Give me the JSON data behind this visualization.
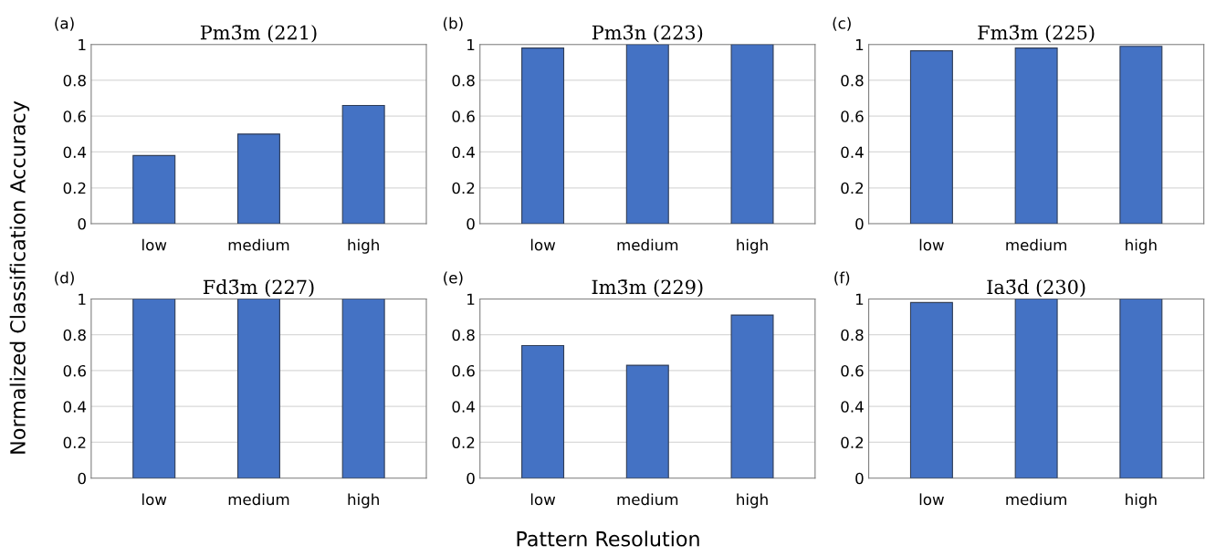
{
  "chart_data": [
    {
      "type": "bar",
      "title": "Pm3̄m (221)",
      "annotations": [
        "(a)"
      ],
      "ylabel": "Normalized Classification Accuracy",
      "categories": [
        "low",
        "medium",
        "high"
      ],
      "values": [
        0.38,
        0.5,
        0.66
      ],
      "color": "#4472c4",
      "ylim": [
        0,
        1
      ],
      "yticks": [
        0,
        0.2,
        0.4,
        0.6,
        0.8,
        1
      ],
      "grid": "y",
      "legend": false
    },
    {
      "type": "bar",
      "title": "Pm3̄n (223)",
      "annotations": [
        "(b)"
      ],
      "categories": [
        "low",
        "medium",
        "high"
      ],
      "values": [
        0.98,
        1,
        1
      ],
      "color": "#4472c4",
      "ylim": [
        0,
        1
      ],
      "yticks": [
        0,
        0.2,
        0.4,
        0.6,
        0.8,
        1
      ],
      "grid": "y",
      "legend": false
    },
    {
      "type": "bar",
      "title": "Fm3̄m (225)",
      "annotations": [
        "(c)"
      ],
      "categories": [
        "low",
        "medium",
        "high"
      ],
      "values": [
        0.965,
        0.98,
        0.99
      ],
      "color": "#4472c4",
      "ylim": [
        0,
        1
      ],
      "yticks": [
        0,
        0.2,
        0.4,
        0.6,
        0.8,
        1
      ],
      "grid": "y",
      "legend": false
    },
    {
      "type": "bar",
      "title": "Fd3̄m (227)",
      "annotations": [
        "(d)"
      ],
      "categories": [
        "low",
        "medium",
        "high"
      ],
      "values": [
        1,
        1,
        1
      ],
      "color": "#4472c4",
      "ylim": [
        0,
        1
      ],
      "yticks": [
        0,
        0.2,
        0.4,
        0.6,
        0.8,
        1
      ],
      "grid": "y",
      "legend": false
    },
    {
      "type": "bar",
      "title": "Im3̄m (229)",
      "annotations": [
        "(e)"
      ],
      "xlabel": "Pattern Resolution",
      "categories": [
        "low",
        "medium",
        "high"
      ],
      "values": [
        0.74,
        0.63,
        0.91
      ],
      "color": "#4472c4",
      "ylim": [
        0,
        1
      ],
      "yticks": [
        0,
        0.2,
        0.4,
        0.6,
        0.8,
        1
      ],
      "grid": "y",
      "legend": false
    },
    {
      "type": "bar",
      "title": "Ia3̄d (230)",
      "annotations": [
        "(f)"
      ],
      "categories": [
        "low",
        "medium",
        "high"
      ],
      "values": [
        0.98,
        1,
        1
      ],
      "color": "#4472c4",
      "ylim": [
        0,
        1
      ],
      "yticks": [
        0,
        0.2,
        0.4,
        0.6,
        0.8,
        1
      ],
      "grid": "y",
      "legend": false
    }
  ]
}
